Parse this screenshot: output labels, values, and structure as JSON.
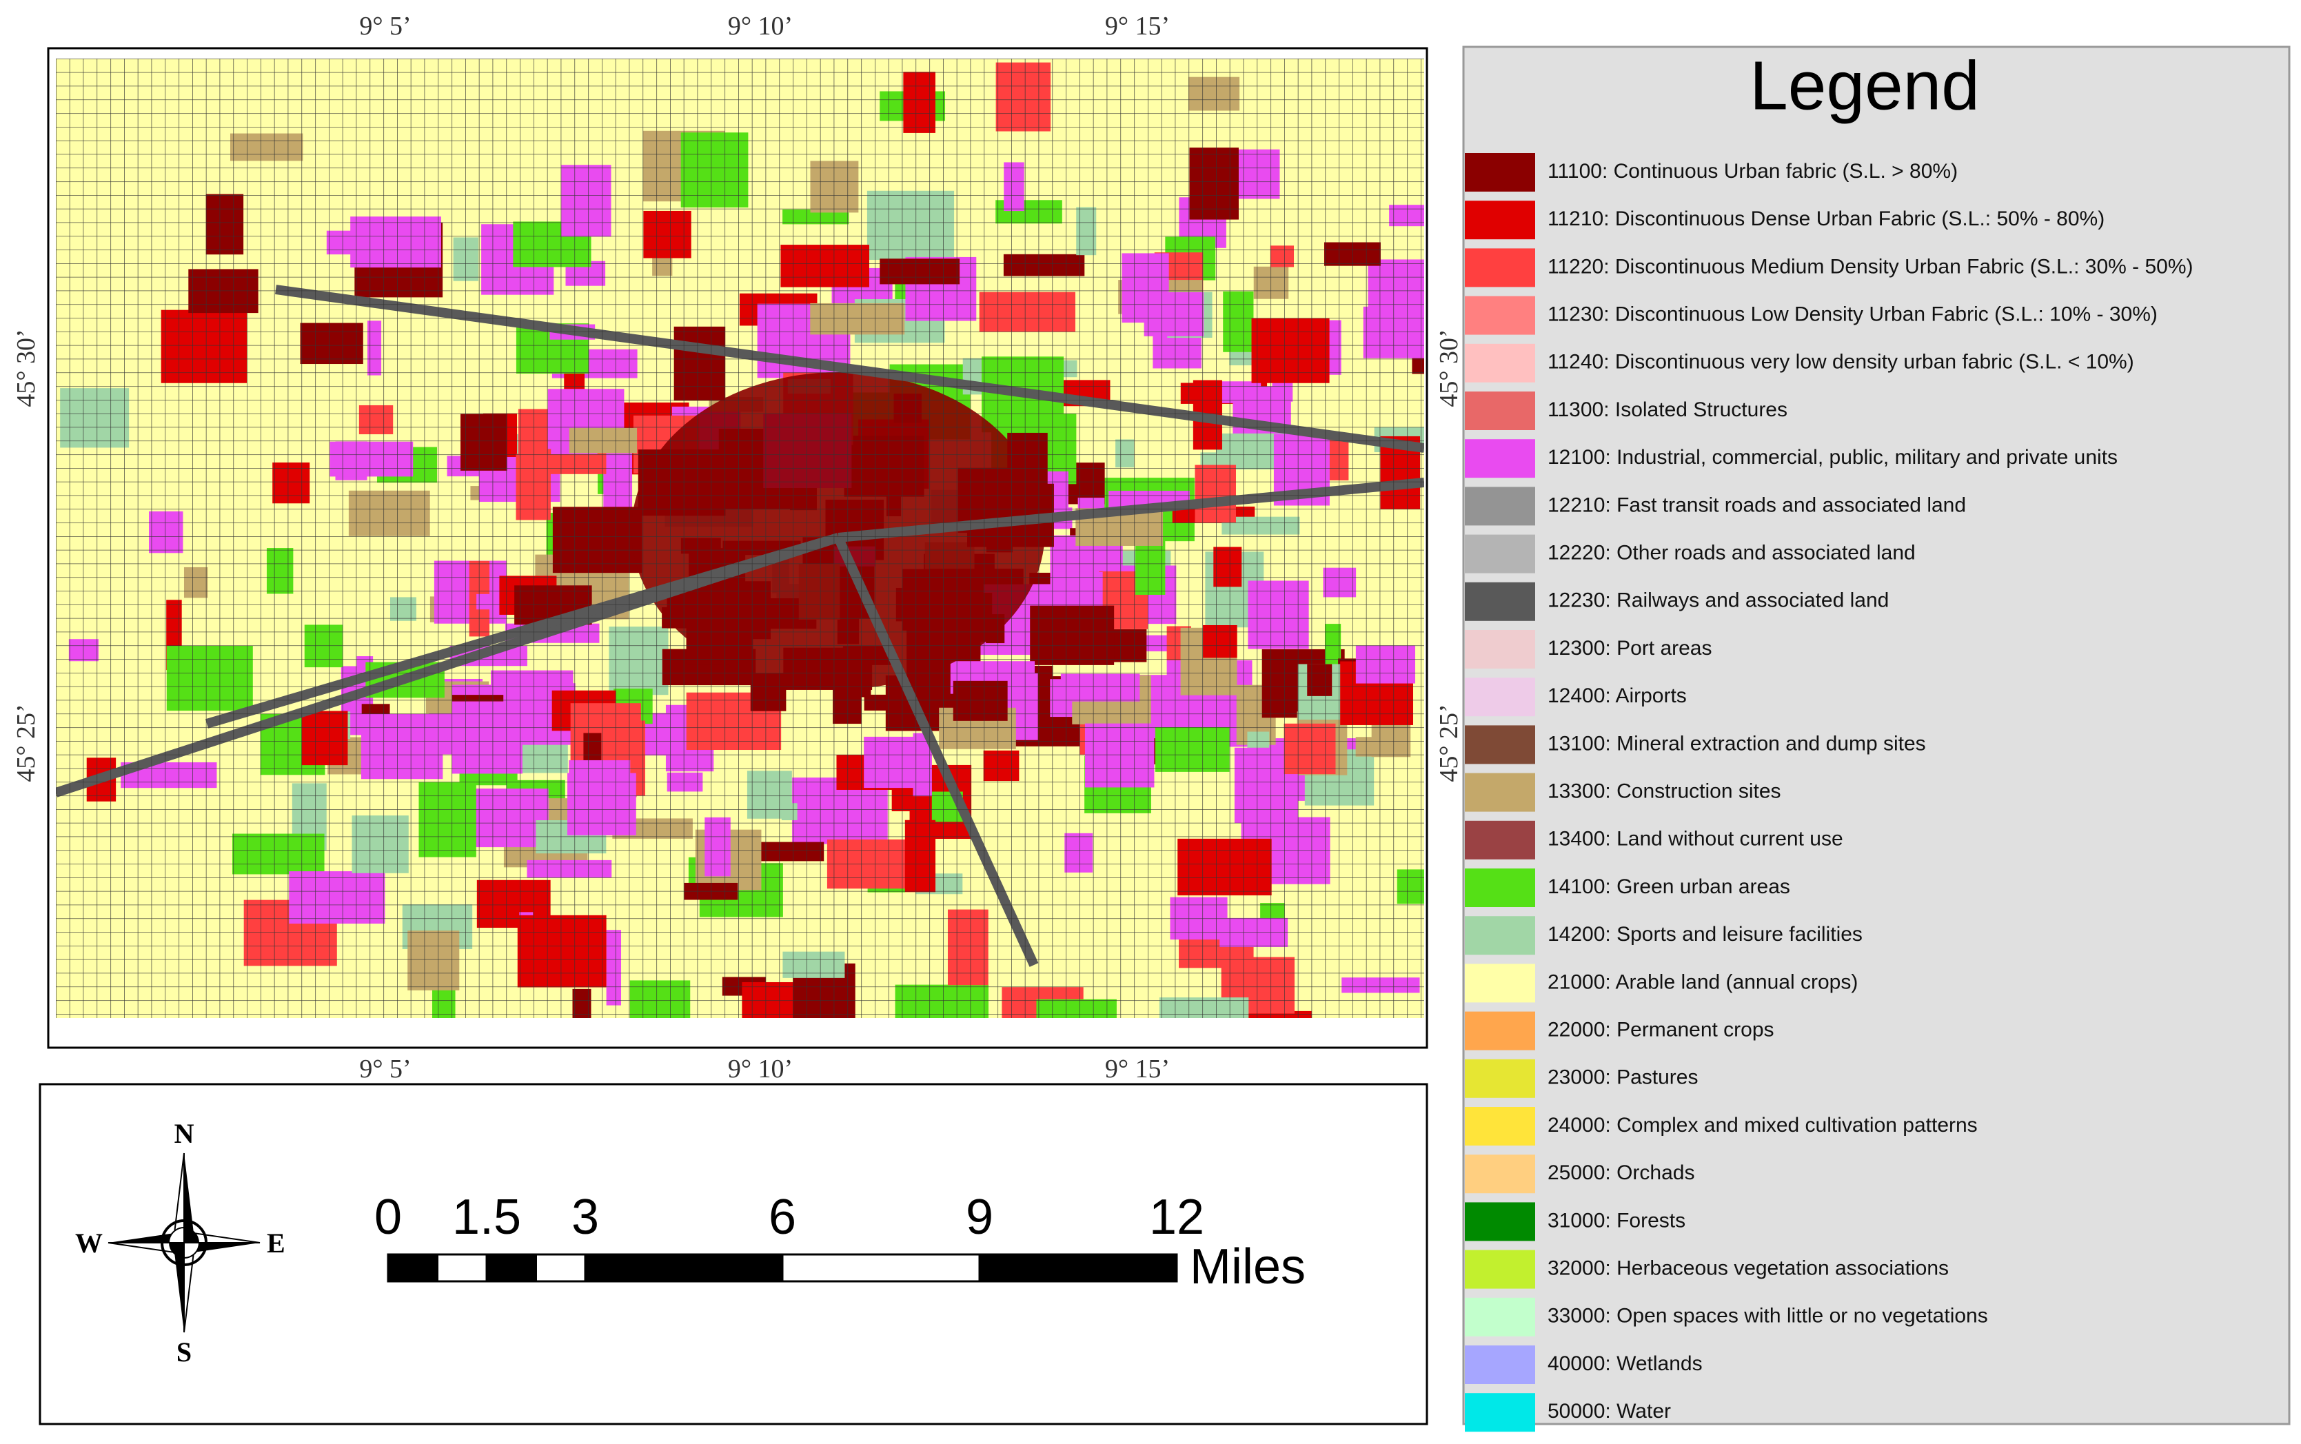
{
  "map": {
    "coordinates": {
      "longitude": [
        "9° 5’",
        "9° 10’",
        "9° 15’"
      ],
      "latitude": [
        "45° 30’",
        "45° 25’"
      ]
    },
    "compass": {
      "north": "N",
      "east": "E",
      "south": "S",
      "west": "W"
    },
    "scale_bar": {
      "ticks": [
        0,
        1.5,
        3,
        6,
        9,
        12
      ],
      "unit": "Miles"
    }
  },
  "legend": {
    "title": "Legend",
    "items": [
      {
        "label": "11100: Continuous Urban fabric (S.L. > 80%)",
        "color": "#8b0000"
      },
      {
        "label": "11210: Discontinuous Dense Urban Fabric (S.L.: 50% - 80%)",
        "color": "#e00000"
      },
      {
        "label": "11220: Discontinuous Medium Density Urban Fabric (S.L.: 30% - 50%)",
        "color": "#ff4040"
      },
      {
        "label": "11230: Discontinuous Low Density Urban Fabric (S.L.: 10% - 30%)",
        "color": "#ff8080"
      },
      {
        "label": "11240: Discontinuous very low density urban fabric (S.L. < 10%)",
        "color": "#ffc0c0"
      },
      {
        "label": "11300: Isolated Structures",
        "color": "#e86868"
      },
      {
        "label": "12100: Industrial, commercial, public, military and private units",
        "color": "#e94bf0"
      },
      {
        "label": "12210: Fast transit roads and associated land",
        "color": "#949494"
      },
      {
        "label": "12220: Other roads and associated land",
        "color": "#b4b4b4"
      },
      {
        "label": "12230: Railways and associated land",
        "color": "#595959"
      },
      {
        "label": "12300: Port areas",
        "color": "#efcccf"
      },
      {
        "label": "12400: Airports",
        "color": "#eecbe8"
      },
      {
        "label": "13100: Mineral extraction and dump sites",
        "color": "#7f4a36"
      },
      {
        "label": "13300: Construction sites",
        "color": "#c4a86a"
      },
      {
        "label": "13400: Land without current use",
        "color": "#9a4244"
      },
      {
        "label": "14100: Green urban areas",
        "color": "#55e016"
      },
      {
        "label": "14200: Sports and leisure facilities",
        "color": "#a1d6a6"
      },
      {
        "label": "21000: Arable land (annual crops)",
        "color": "#ffffa8"
      },
      {
        "label": "22000: Permanent crops",
        "color": "#ffa64d"
      },
      {
        "label": "23000: Pastures",
        "color": "#e6e633"
      },
      {
        "label": "24000: Complex and mixed cultivation patterns",
        "color": "#ffe43a"
      },
      {
        "label": "25000: Orchads",
        "color": "#ffcf80"
      },
      {
        "label": "31000: Forests",
        "color": "#008a00"
      },
      {
        "label": "32000: Herbaceous vegetation associations",
        "color": "#c2f02e"
      },
      {
        "label": "33000: Open spaces with little or no vegetations",
        "color": "#c2ffcc"
      },
      {
        "label": "40000: Wetlands",
        "color": "#a6a6ff"
      },
      {
        "label": "50000: Water",
        "color": "#00e8e8"
      }
    ]
  }
}
